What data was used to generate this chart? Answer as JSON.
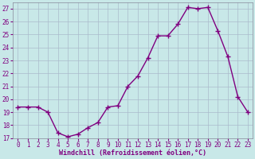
{
  "x": [
    0,
    1,
    2,
    3,
    4,
    5,
    6,
    7,
    8,
    9,
    10,
    11,
    12,
    13,
    14,
    15,
    16,
    17,
    18,
    19,
    20,
    21,
    22,
    23
  ],
  "y": [
    19.4,
    19.4,
    19.4,
    19.0,
    17.4,
    17.1,
    17.3,
    17.8,
    18.2,
    19.4,
    19.5,
    21.0,
    21.8,
    23.2,
    24.9,
    24.9,
    25.8,
    27.1,
    27.0,
    27.1,
    25.3,
    23.3,
    20.2,
    19.0
  ],
  "line_color": "#800080",
  "marker": "+",
  "marker_size": 4,
  "marker_lw": 1.0,
  "line_width": 1.0,
  "bg_color": "#c8e8e8",
  "grid_color": "#aabbcc",
  "xlabel": "Windchill (Refroidissement éolien,°C)",
  "ylabel": "",
  "title": "",
  "xlim": [
    -0.5,
    23.5
  ],
  "ylim": [
    17,
    27.5
  ],
  "yticks": [
    17,
    18,
    19,
    20,
    21,
    22,
    23,
    24,
    25,
    26,
    27
  ],
  "xticks": [
    0,
    1,
    2,
    3,
    4,
    5,
    6,
    7,
    8,
    9,
    10,
    11,
    12,
    13,
    14,
    15,
    16,
    17,
    18,
    19,
    20,
    21,
    22,
    23
  ],
  "tick_fontsize": 5.5,
  "xlabel_fontsize": 6.0,
  "xlabel_color": "#800080"
}
